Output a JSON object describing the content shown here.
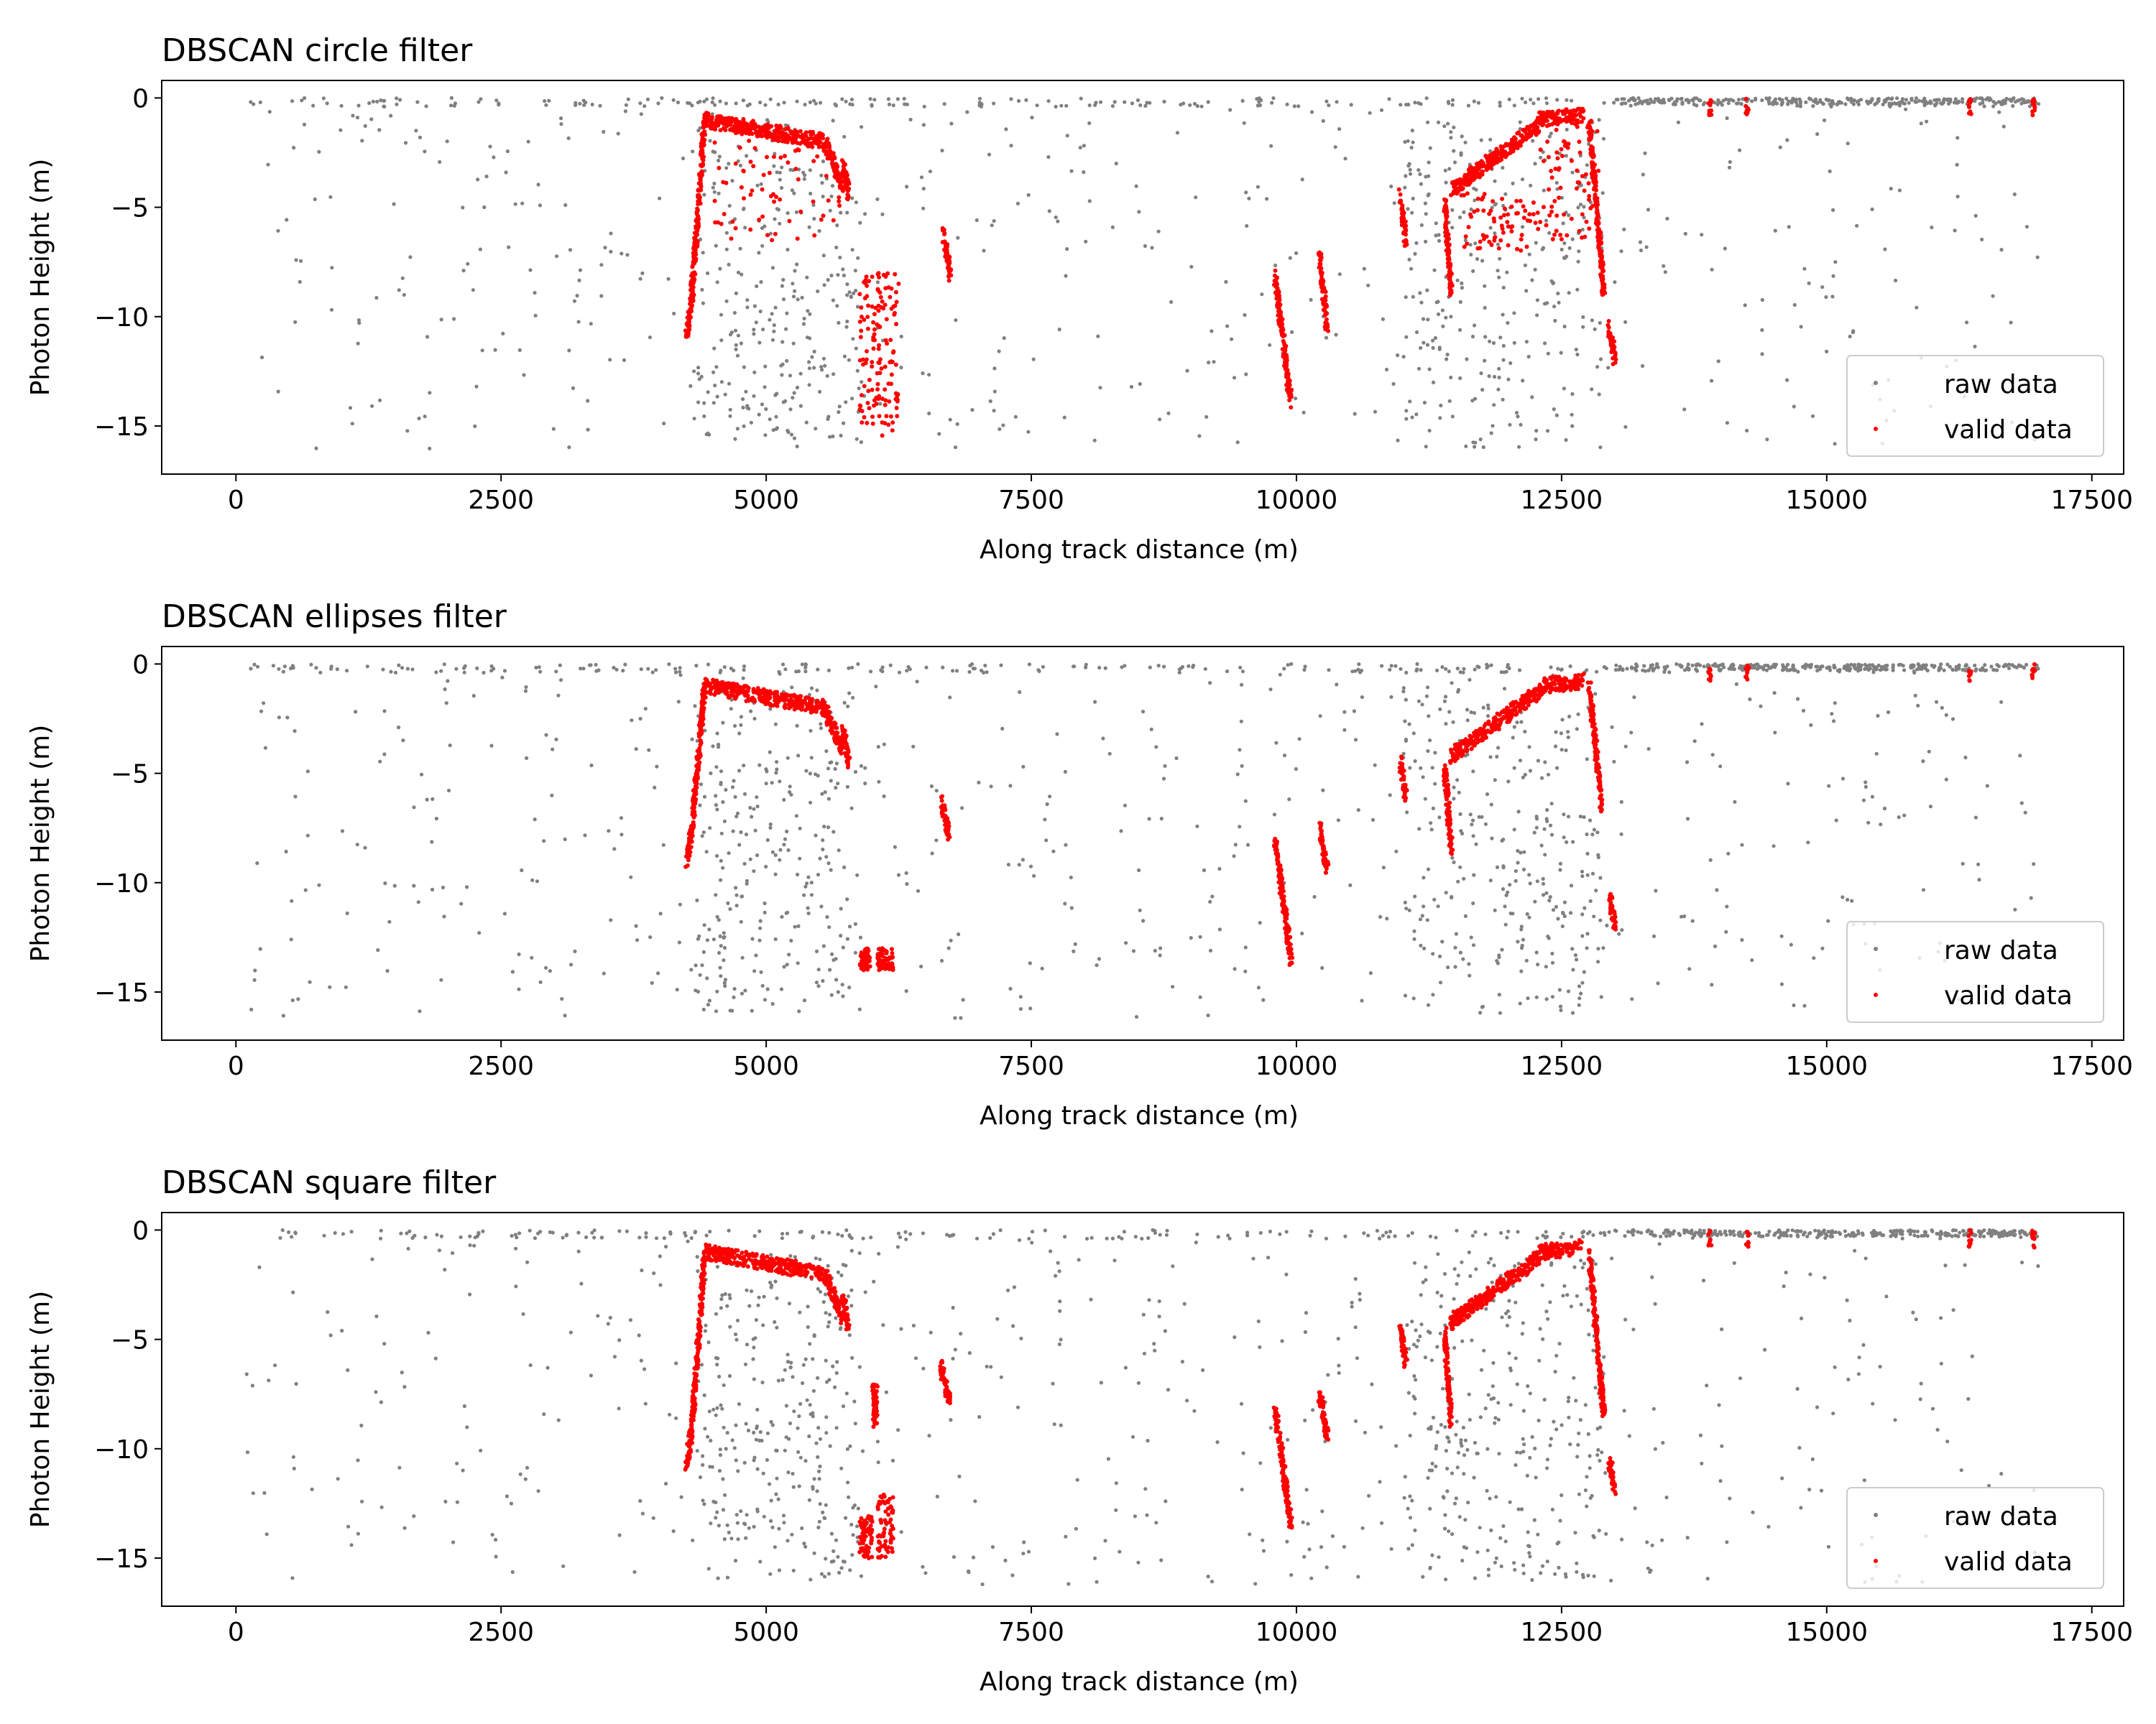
{
  "colors": {
    "raw": "#808080",
    "valid": "#ff0000",
    "axes": "#000000",
    "background": "#ffffff"
  },
  "chart_data": [
    {
      "type": "scatter",
      "title": "DBSCAN circle filter",
      "xlabel": "Along track distance (m)",
      "ylabel": "Photon Height (m)",
      "xlim": [
        -700,
        17800
      ],
      "ylim": [
        -17.2,
        0.8
      ],
      "xticks": [
        0,
        2500,
        5000,
        7500,
        10000,
        12500,
        15000,
        17500
      ],
      "xtick_labels": [
        "0",
        "2500",
        "5000",
        "7500",
        "10000",
        "12500",
        "15000",
        "17500"
      ],
      "yticks": [
        0,
        -5,
        -10,
        -15
      ],
      "ytick_labels": [
        "0",
        "−5",
        "−10",
        "−15"
      ],
      "grid": false,
      "legend_position": "lower-right",
      "legend": [
        "raw data",
        "valid data"
      ],
      "series": [
        {
          "name": "raw data",
          "marker": "dot",
          "color": "#808080",
          "x_range": [
            100,
            17000
          ],
          "y_range": [
            -16.2,
            0
          ],
          "dense_regions": [
            [
              4300,
              5900,
              -16,
              -1
            ],
            [
              11000,
              12900,
              -16,
              -1
            ]
          ]
        },
        {
          "name": "valid data",
          "marker": "dot",
          "color": "#ff0000",
          "segments": [
            {
              "x": [
                4250,
                4300
              ],
              "y": [
                -11.0,
                -9.0
              ]
            },
            {
              "x": [
                4300,
                4420
              ],
              "y": [
                -9.0,
                -1.0
              ]
            },
            {
              "x": [
                4420,
                5550
              ],
              "y": [
                -1.0,
                -2.0
              ]
            },
            {
              "x": [
                5550,
                5720
              ],
              "y": [
                -2.0,
                -4.0
              ]
            },
            {
              "x": [
                5720,
                5780
              ],
              "y": [
                -3.0,
                -4.5
              ]
            },
            {
              "x": [
                6670,
                6740
              ],
              "y": [
                -6.2,
                -8.2
              ]
            },
            {
              "x": [
                9800,
                9950
              ],
              "y": [
                -8.2,
                -14.0
              ]
            },
            {
              "x": [
                10220,
                10290
              ],
              "y": [
                -7.2,
                -10.5
              ]
            },
            {
              "x": [
                10980,
                11030
              ],
              "y": [
                -4.5,
                -6.5
              ]
            },
            {
              "x": [
                11400,
                11460
              ],
              "y": [
                -4.8,
                -9.0
              ]
            },
            {
              "x": [
                11460,
                12300
              ],
              "y": [
                -4.2,
                -1.2
              ]
            },
            {
              "x": [
                12300,
                12700
              ],
              "y": [
                -1.0,
                -0.8
              ]
            },
            {
              "x": [
                12760,
                12900
              ],
              "y": [
                -1.0,
                -9.0
              ]
            },
            {
              "x": [
                12950,
                13000
              ],
              "y": [
                -10.5,
                -12.0
              ]
            }
          ],
          "scatter_clusters": [
            [
              4500,
              5700,
              -1.5,
              -6.5
            ],
            [
              6050,
              6250,
              -8.0,
              -15.5
            ],
            [
              5880,
              6080,
              -8.0,
              -15.0
            ],
            [
              12300,
              12850,
              -1.0,
              -6.5
            ],
            [
              11550,
              12300,
              -4.0,
              -7.0
            ]
          ]
        }
      ]
    },
    {
      "type": "scatter",
      "title": "DBSCAN ellipses filter",
      "xlabel": "Along track distance (m)",
      "ylabel": "Photon Height (m)",
      "xlim": [
        -700,
        17800
      ],
      "ylim": [
        -17.2,
        0.8
      ],
      "xticks": [
        0,
        2500,
        5000,
        7500,
        10000,
        12500,
        15000,
        17500
      ],
      "xtick_labels": [
        "0",
        "2500",
        "5000",
        "7500",
        "10000",
        "12500",
        "15000",
        "17500"
      ],
      "yticks": [
        0,
        -5,
        -10,
        -15
      ],
      "ytick_labels": [
        "0",
        "−5",
        "−10",
        "−15"
      ],
      "grid": false,
      "legend_position": "lower-right",
      "legend": [
        "raw data",
        "valid data"
      ],
      "series": [
        {
          "name": "raw data",
          "marker": "dot",
          "color": "#808080",
          "x_range": [
            100,
            17000
          ],
          "y_range": [
            -16.2,
            0
          ],
          "dense_regions": [
            [
              4300,
              5900,
              -16,
              -1
            ],
            [
              11000,
              12900,
              -16,
              -1
            ]
          ]
        },
        {
          "name": "valid data",
          "marker": "dot",
          "color": "#ff0000",
          "segments": [
            {
              "x": [
                4250,
                4300
              ],
              "y": [
                -9.0,
                -7.5
              ]
            },
            {
              "x": [
                4300,
                4420
              ],
              "y": [
                -7.5,
                -1.0
              ]
            },
            {
              "x": [
                4420,
                5550
              ],
              "y": [
                -1.0,
                -2.0
              ]
            },
            {
              "x": [
                5550,
                5720
              ],
              "y": [
                -2.0,
                -4.0
              ]
            },
            {
              "x": [
                5720,
                5780
              ],
              "y": [
                -3.0,
                -4.5
              ]
            },
            {
              "x": [
                6650,
                6720
              ],
              "y": [
                -6.2,
                -7.8
              ]
            },
            {
              "x": [
                9800,
                9950
              ],
              "y": [
                -8.2,
                -13.5
              ]
            },
            {
              "x": [
                10220,
                10290
              ],
              "y": [
                -7.5,
                -9.5
              ]
            },
            {
              "x": [
                10980,
                11030
              ],
              "y": [
                -4.5,
                -6.0
              ]
            },
            {
              "x": [
                11400,
                11460
              ],
              "y": [
                -4.8,
                -8.5
              ]
            },
            {
              "x": [
                11460,
                12300
              ],
              "y": [
                -4.2,
                -1.2
              ]
            },
            {
              "x": [
                12300,
                12700
              ],
              "y": [
                -1.0,
                -0.8
              ]
            },
            {
              "x": [
                12760,
                12880
              ],
              "y": [
                -1.0,
                -6.5
              ]
            },
            {
              "x": [
                12950,
                13000
              ],
              "y": [
                -10.5,
                -12.0
              ]
            }
          ],
          "scatter_clusters": [
            [
              6050,
              6200,
              -13.0,
              -14.0
            ],
            [
              5880,
              5980,
              -13.0,
              -14.0
            ]
          ]
        }
      ]
    },
    {
      "type": "scatter",
      "title": "DBSCAN square filter",
      "xlabel": "Along track distance (m)",
      "ylabel": "Photon Height (m)",
      "xlim": [
        -700,
        17800
      ],
      "ylim": [
        -17.2,
        0.8
      ],
      "xticks": [
        0,
        2500,
        5000,
        7500,
        10000,
        12500,
        15000,
        17500
      ],
      "xtick_labels": [
        "0",
        "2500",
        "5000",
        "7500",
        "10000",
        "12500",
        "15000",
        "17500"
      ],
      "yticks": [
        0,
        -5,
        -10,
        -15
      ],
      "ytick_labels": [
        "0",
        "−5",
        "−10",
        "−15"
      ],
      "grid": false,
      "legend_position": "lower-right",
      "legend": [
        "raw data",
        "valid data"
      ],
      "series": [
        {
          "name": "raw data",
          "marker": "dot",
          "color": "#808080",
          "x_range": [
            100,
            17000
          ],
          "y_range": [
            -16.2,
            0
          ],
          "dense_regions": [
            [
              4300,
              5900,
              -16,
              -1
            ],
            [
              11000,
              12900,
              -16,
              -1
            ]
          ]
        },
        {
          "name": "valid data",
          "marker": "dot",
          "color": "#ff0000",
          "segments": [
            {
              "x": [
                4250,
                4300
              ],
              "y": [
                -10.8,
                -9.0
              ]
            },
            {
              "x": [
                4300,
                4420
              ],
              "y": [
                -9.0,
                -1.0
              ]
            },
            {
              "x": [
                4420,
                5550
              ],
              "y": [
                -1.0,
                -2.0
              ]
            },
            {
              "x": [
                5550,
                5720
              ],
              "y": [
                -2.0,
                -4.0
              ]
            },
            {
              "x": [
                5720,
                5780
              ],
              "y": [
                -3.0,
                -4.5
              ]
            },
            {
              "x": [
                6650,
                6730
              ],
              "y": [
                -6.2,
                -8.0
              ]
            },
            {
              "x": [
                9800,
                9950
              ],
              "y": [
                -8.2,
                -13.5
              ]
            },
            {
              "x": [
                10220,
                10290
              ],
              "y": [
                -7.5,
                -9.5
              ]
            },
            {
              "x": [
                10980,
                11030
              ],
              "y": [
                -4.5,
                -6.0
              ]
            },
            {
              "x": [
                11400,
                11460
              ],
              "y": [
                -4.8,
                -9.0
              ]
            },
            {
              "x": [
                11460,
                12300
              ],
              "y": [
                -4.2,
                -1.2
              ]
            },
            {
              "x": [
                12300,
                12700
              ],
              "y": [
                -1.0,
                -0.8
              ]
            },
            {
              "x": [
                12760,
                12900
              ],
              "y": [
                -1.0,
                -8.5
              ]
            },
            {
              "x": [
                12950,
                13000
              ],
              "y": [
                -10.5,
                -12.0
              ]
            }
          ],
          "scatter_clusters": [
            [
              6050,
              6200,
              -12.0,
              -15.0
            ],
            [
              5880,
              6000,
              -13.0,
              -15.0
            ],
            [
              6000,
              6050,
              -7.0,
              -9.0
            ]
          ]
        }
      ]
    }
  ]
}
